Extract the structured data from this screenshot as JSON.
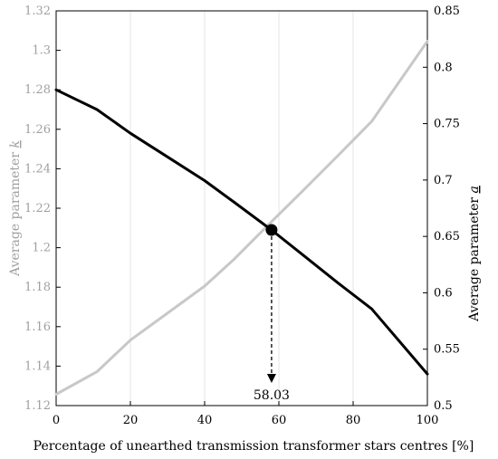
{
  "chart_data": {
    "type": "line",
    "xlabel": "Percentage of unearthed transmission transformer stars centres [%]",
    "ylabel_left_prefix": "Average parameter ",
    "ylabel_left_var": "k",
    "ylabel_right_prefix": "Average parameter ",
    "ylabel_right_var": "a",
    "xlim": [
      0,
      100
    ],
    "ylim_left": [
      1.12,
      1.32
    ],
    "ylim_right": [
      0.5,
      0.85
    ],
    "x_ticks": [
      "0",
      "20",
      "40",
      "60",
      "80",
      "100"
    ],
    "y_left_ticks": [
      "1.12",
      "1.14",
      "1.16",
      "1.18",
      "1.2",
      "1.22",
      "1.24",
      "1.26",
      "1.28",
      "1.3",
      "1.32"
    ],
    "y_right_ticks": [
      "0.5",
      "0.55",
      "0.6",
      "0.65",
      "0.7",
      "0.75",
      "0.8",
      "0.85"
    ],
    "grid": "vertical",
    "series": [
      {
        "axis": "left",
        "color": "#000000",
        "x": [
          0,
          11,
          20,
          30,
          40,
          48,
          58,
          66,
          76,
          85,
          100
        ],
        "values": [
          1.28,
          1.27,
          1.258,
          1.246,
          1.234,
          1.223,
          1.209,
          1.197,
          1.182,
          1.169,
          1.136
        ]
      },
      {
        "axis": "right",
        "color": "#c8c8c8",
        "x": [
          0,
          11,
          20,
          30,
          40,
          48,
          58,
          66,
          76,
          85,
          100
        ],
        "values": [
          0.51,
          0.53,
          0.558,
          0.582,
          0.606,
          0.63,
          0.663,
          0.689,
          0.722,
          0.752,
          0.823
        ]
      }
    ],
    "marker": {
      "x": 58.03,
      "y_left": 1.209
    },
    "annotation": {
      "label": "58.03",
      "x": 58.03
    },
    "colors": {
      "left_axis": "#a0a0a0",
      "right_axis": "#000000"
    }
  }
}
